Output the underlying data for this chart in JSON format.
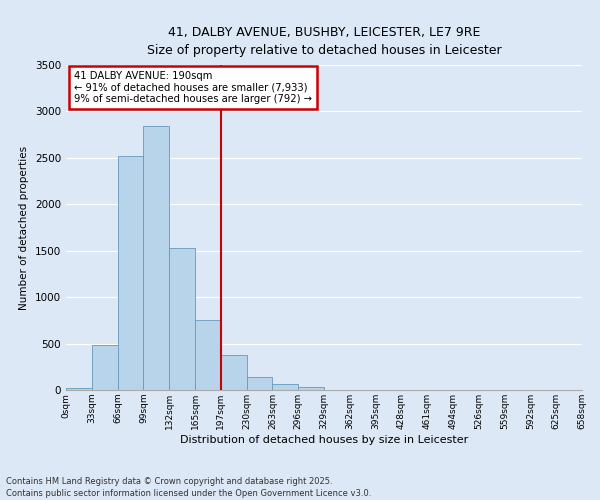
{
  "title_line1": "41, DALBY AVENUE, BUSHBY, LEICESTER, LE7 9RE",
  "title_line2": "Size of property relative to detached houses in Leicester",
  "xlabel": "Distribution of detached houses by size in Leicester",
  "ylabel": "Number of detached properties",
  "bar_color": "#b8d4ea",
  "bar_edge_color": "#6699bb",
  "background_color": "#dce8f5",
  "gridcolor": "#ffffff",
  "bin_labels": [
    "0sqm",
    "33sqm",
    "66sqm",
    "99sqm",
    "132sqm",
    "165sqm",
    "197sqm",
    "230sqm",
    "263sqm",
    "296sqm",
    "329sqm",
    "362sqm",
    "395sqm",
    "428sqm",
    "461sqm",
    "494sqm",
    "526sqm",
    "559sqm",
    "592sqm",
    "625sqm",
    "658sqm"
  ],
  "bar_values": [
    20,
    490,
    2520,
    2840,
    1530,
    750,
    380,
    145,
    70,
    35,
    5,
    5,
    2,
    2,
    0,
    0,
    0,
    0,
    0,
    0
  ],
  "ylim": [
    0,
    3500
  ],
  "yticks": [
    0,
    500,
    1000,
    1500,
    2000,
    2500,
    3000,
    3500
  ],
  "vline_bin_index": 6,
  "annotation_title": "41 DALBY AVENUE: 190sqm",
  "annotation_line1": "← 91% of detached houses are smaller (7,933)",
  "annotation_line2": "9% of semi-detached houses are larger (792) →",
  "annotation_box_color": "#ffffff",
  "annotation_border_color": "#cc0000",
  "vline_color": "#cc0000",
  "footer_line1": "Contains HM Land Registry data © Crown copyright and database right 2025.",
  "footer_line2": "Contains public sector information licensed under the Open Government Licence v3.0."
}
